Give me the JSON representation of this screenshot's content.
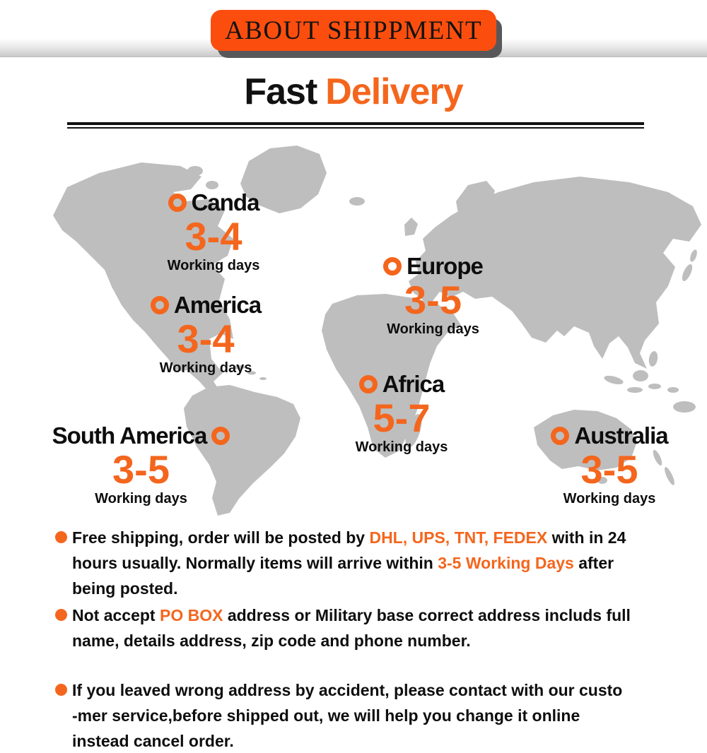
{
  "header": {
    "banner_label": "ABOUT SHIPPMENT"
  },
  "title": {
    "part1": "Fast",
    "part2": "Delivery"
  },
  "map": {
    "regions": [
      {
        "name": "Canda",
        "days": "3-4",
        "sub": "Working days"
      },
      {
        "name": "America",
        "days": "3-4",
        "sub": "Working days"
      },
      {
        "name": "Europe",
        "days": "3-5",
        "sub": "Working days"
      },
      {
        "name": "Africa",
        "days": "5-7",
        "sub": "Working days"
      },
      {
        "name": "South America",
        "days": "3-5",
        "sub": "Working days"
      },
      {
        "name": "Australia",
        "days": "3-5",
        "sub": "Working days"
      }
    ]
  },
  "notes": [
    {
      "segments": [
        {
          "t": "Free shipping, order will be posted by "
        },
        {
          "t": "DHL, UPS, TNT, FEDEX",
          "c": "o"
        },
        {
          "t": " with in 24"
        },
        {
          "br": true
        },
        {
          "t": "hours usually. Normally items will arrive within "
        },
        {
          "t": "3-5 Working Days",
          "c": "o"
        },
        {
          "t": " after"
        },
        {
          "br": true
        },
        {
          "t": "being posted."
        }
      ]
    },
    {
      "segments": [
        {
          "t": "Not accept "
        },
        {
          "t": "PO BOX",
          "c": "o"
        },
        {
          "t": " address or Military base correct address includs full"
        },
        {
          "br": true
        },
        {
          "t": "name, details address, zip code and phone number."
        }
      ]
    },
    {
      "segments": [
        {
          "t": "If you leaved wrong address by accident, please contact with our custo"
        },
        {
          "br": true
        },
        {
          "t": "-mer service,before shipped out, we will help you change it online"
        },
        {
          "br": true
        },
        {
          "t": "instead cancel order."
        }
      ]
    }
  ],
  "colors": {
    "accent_orange": "#f4661d",
    "banner_orange": "#fb4e0e",
    "banner_shadow": "#58585a",
    "map_gray": "#bebebe",
    "text_black": "#0d0d0d"
  }
}
